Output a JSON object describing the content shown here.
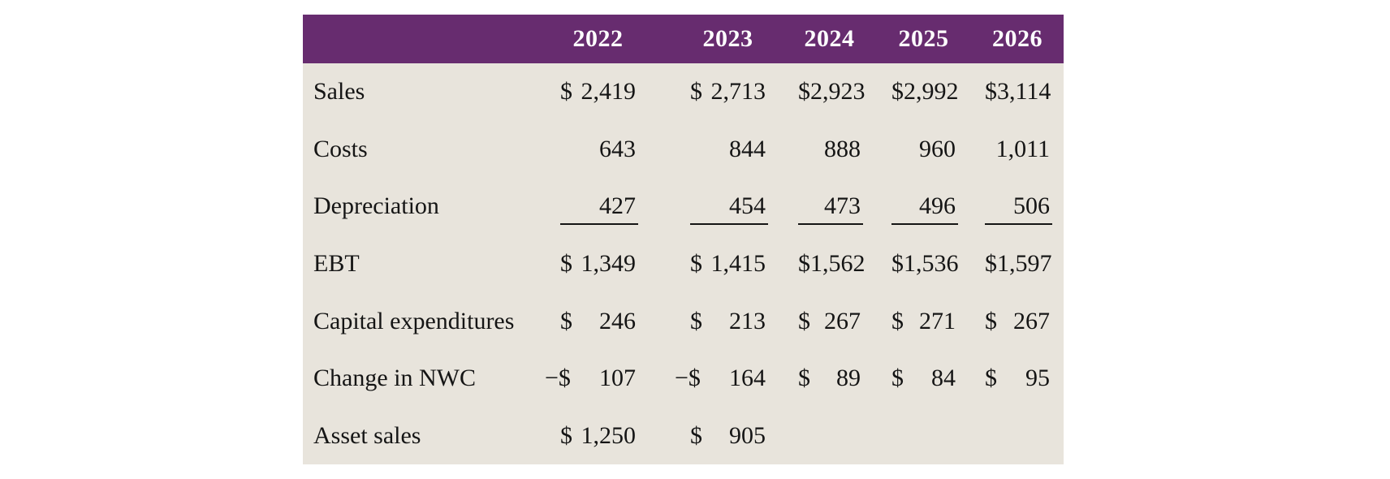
{
  "table": {
    "columns": [
      "",
      "2022",
      "2023",
      "2024",
      "2025",
      "2026"
    ],
    "rows": [
      {
        "label": "Sales",
        "underline": false,
        "cells": [
          {
            "prefix": "$",
            "value": "2,419"
          },
          {
            "prefix": "$",
            "value": "2,713"
          },
          {
            "prefix": "$",
            "value": "2,923"
          },
          {
            "prefix": "$",
            "value": "2,992"
          },
          {
            "prefix": "$",
            "value": "3,114"
          }
        ]
      },
      {
        "label": "Costs",
        "underline": false,
        "cells": [
          {
            "prefix": "",
            "value": "643"
          },
          {
            "prefix": "",
            "value": "844"
          },
          {
            "prefix": "",
            "value": "888"
          },
          {
            "prefix": "",
            "value": "960"
          },
          {
            "prefix": "",
            "value": "1,011"
          }
        ]
      },
      {
        "label": "Depreciation",
        "underline": true,
        "cells": [
          {
            "prefix": "",
            "value": "427"
          },
          {
            "prefix": "",
            "value": "454"
          },
          {
            "prefix": "",
            "value": "473"
          },
          {
            "prefix": "",
            "value": "496"
          },
          {
            "prefix": "",
            "value": "506"
          }
        ]
      },
      {
        "label": "EBT",
        "underline": false,
        "cells": [
          {
            "prefix": "$",
            "value": "1,349"
          },
          {
            "prefix": "$",
            "value": "1,415"
          },
          {
            "prefix": "$",
            "value": "1,562"
          },
          {
            "prefix": "$",
            "value": "1,536"
          },
          {
            "prefix": "$",
            "value": "1,597"
          }
        ]
      },
      {
        "label": "Capital expenditures",
        "underline": false,
        "cells": [
          {
            "prefix": "$",
            "value": "246"
          },
          {
            "prefix": "$",
            "value": "213"
          },
          {
            "prefix": "$",
            "value": "267"
          },
          {
            "prefix": "$",
            "value": "271"
          },
          {
            "prefix": "$",
            "value": "267"
          }
        ]
      },
      {
        "label": "Change in NWC",
        "underline": false,
        "cells": [
          {
            "prefix": "−$",
            "value": "107"
          },
          {
            "prefix": "−$",
            "value": "164"
          },
          {
            "prefix": "$",
            "value": "89"
          },
          {
            "prefix": "$",
            "value": "84"
          },
          {
            "prefix": "$",
            "value": "95"
          }
        ]
      },
      {
        "label": "Asset sales",
        "underline": false,
        "cells": [
          {
            "prefix": "$",
            "value": "1,250"
          },
          {
            "prefix": "$",
            "value": "905"
          },
          {
            "prefix": "",
            "value": ""
          },
          {
            "prefix": "",
            "value": ""
          },
          {
            "prefix": "",
            "value": ""
          }
        ]
      }
    ],
    "colors": {
      "header_bg": "#672c6f",
      "header_text": "#ffffff",
      "body_bg": "#e8e4dc",
      "body_text": "#151515"
    }
  },
  "chart_data": {
    "type": "table",
    "title": "",
    "columns": [
      "2022",
      "2023",
      "2024",
      "2025",
      "2026"
    ],
    "rows": [
      {
        "label": "Sales",
        "values": [
          2419,
          2713,
          2923,
          2992,
          3114
        ]
      },
      {
        "label": "Costs",
        "values": [
          643,
          844,
          888,
          960,
          1011
        ]
      },
      {
        "label": "Depreciation",
        "values": [
          427,
          454,
          473,
          496,
          506
        ]
      },
      {
        "label": "EBT",
        "values": [
          1349,
          1415,
          1562,
          1536,
          1597
        ]
      },
      {
        "label": "Capital expenditures",
        "values": [
          246,
          213,
          267,
          271,
          267
        ]
      },
      {
        "label": "Change in NWC",
        "values": [
          -107,
          -164,
          89,
          84,
          95
        ]
      },
      {
        "label": "Asset sales",
        "values": [
          1250,
          905,
          null,
          null,
          null
        ]
      }
    ]
  }
}
